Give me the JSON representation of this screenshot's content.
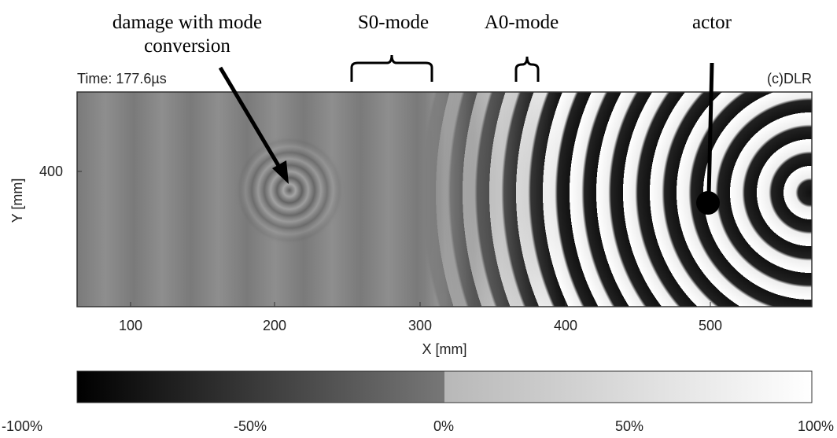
{
  "annotations": {
    "damage": [
      "damage with mode",
      "conversion"
    ],
    "s0": "S0-mode",
    "a0": "A0-mode",
    "actor": "actor"
  },
  "plot": {
    "time": "Time: 177.6µs",
    "credit": "(c)DLR",
    "x_axis": {
      "title": "X [mm]",
      "ticks": [
        "100",
        "200",
        "300",
        "400",
        "500"
      ]
    },
    "y_axis": {
      "title": "Y [mm]",
      "ticks": [
        "400"
      ]
    }
  },
  "colorbar": {
    "ticks": [
      "-100%",
      "-50%",
      "0%",
      "50%",
      "100%"
    ]
  }
}
